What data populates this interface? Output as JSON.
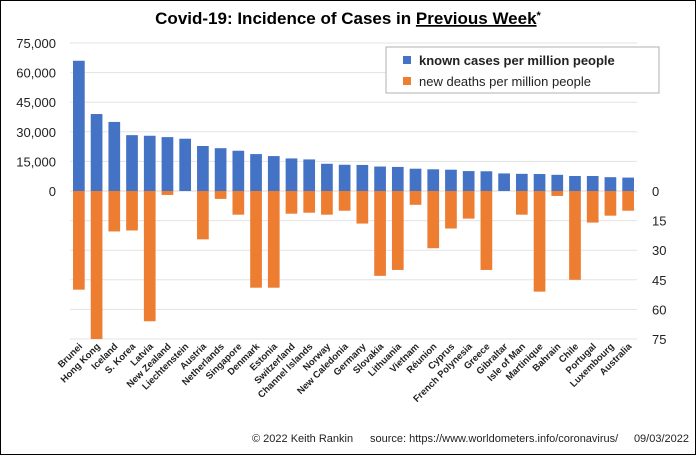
{
  "chart_data": {
    "type": "bar",
    "title": "Covid-19: Incidence of Cases in ",
    "title_underlined": "Previous Week",
    "title_suffix": "*",
    "xlabel": "",
    "ylabel": "",
    "categories": [
      "Brunei",
      "Hong Kong",
      "Iceland",
      "S. Korea",
      "Latvia",
      "New Zealand",
      "Liechtenstein",
      "Austria",
      "Netherlands",
      "Singapore",
      "Denmark",
      "Estonia",
      "Switzerland",
      "Channel Islands",
      "Norway",
      "New Caledonia",
      "Germany",
      "Slovakia",
      "Lithuania",
      "Vietnam",
      "Réunion",
      "Cyprus",
      "French Polynesia",
      "Greece",
      "Gibraltar",
      "Isle of Man",
      "Martinique",
      "Bahrain",
      "Chile",
      "Portugal",
      "Luxembourg",
      "Australia"
    ],
    "series": [
      {
        "name": "known cases per million people",
        "color": "#4472C4",
        "axis": "left",
        "direction": "up",
        "values": [
          66000,
          39000,
          35000,
          28300,
          28000,
          27300,
          26500,
          22800,
          21700,
          20400,
          18700,
          17700,
          16500,
          16000,
          13800,
          13300,
          13200,
          12400,
          12200,
          11300,
          11000,
          10800,
          10100,
          10000,
          8900,
          8700,
          8600,
          8200,
          7600,
          7600,
          7000,
          6800
        ]
      },
      {
        "name": "new deaths per million people",
        "color": "#ED7D31",
        "axis": "right",
        "direction": "down",
        "values": [
          50,
          75,
          20.5,
          20,
          66,
          2,
          0,
          24.5,
          4,
          12,
          49,
          49,
          11.5,
          11,
          12,
          10,
          16.5,
          43,
          40,
          7,
          29,
          19,
          14,
          40,
          0,
          12,
          51,
          2.5,
          45,
          16,
          12.5,
          10
        ]
      }
    ],
    "left_axis": {
      "ticks": [
        "0",
        "15,000",
        "30,000",
        "45,000",
        "60,000",
        "75,000"
      ],
      "range": [
        0,
        75000
      ]
    },
    "right_axis": {
      "ticks": [
        "0",
        "15",
        "30",
        "45",
        "60",
        "75"
      ],
      "range": [
        0,
        75
      ]
    },
    "grid": true,
    "legend_position": "top-right"
  },
  "footer": {
    "copyright": "© 2022  Keith Rankin",
    "source": "source: https://www.worldometers.info/coronavirus/",
    "date": "09/03/2022"
  }
}
